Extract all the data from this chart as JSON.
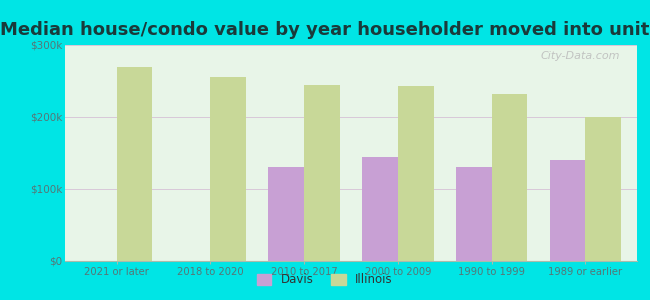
{
  "title": "Median house/condo value by year householder moved into unit",
  "categories": [
    "2021 or later",
    "2018 to 2020",
    "2010 to 2017",
    "2000 to 2009",
    "1990 to 1999",
    "1989 or earlier"
  ],
  "davis_values": [
    null,
    null,
    130000,
    145000,
    130000,
    140000
  ],
  "illinois_values": [
    270000,
    255000,
    245000,
    243000,
    232000,
    200000
  ],
  "davis_color": "#c8a0d4",
  "illinois_color": "#c8d898",
  "background_color": "#00e5e5",
  "plot_bg_gradient_top": "#e0f0e0",
  "plot_bg_gradient_bottom": "#f0faf0",
  "ylim": [
    0,
    300000
  ],
  "yticks": [
    0,
    100000,
    200000,
    300000
  ],
  "ytick_labels": [
    "$0",
    "$100k",
    "$200k",
    "$300k"
  ],
  "legend_labels": [
    "Davis",
    "Illinois"
  ],
  "bar_width": 0.38,
  "grid_color": "#d8c8d8",
  "title_fontsize": 13,
  "title_color": "#1a3a3a",
  "tick_color": "#557777"
}
